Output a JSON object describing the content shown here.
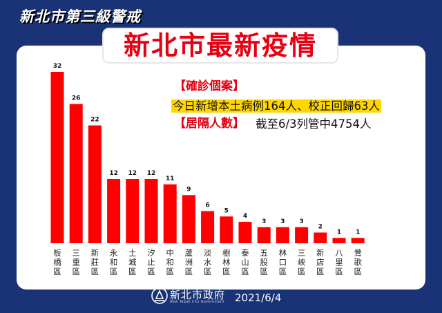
{
  "header": {
    "alert_level": "新北市第三級警戒"
  },
  "title": "新北市最新疫情",
  "notes": {
    "confirmed_heading": "【確診個案】",
    "confirmed_text": "今日新增本土病例164人、校正回歸63人",
    "isolation_heading": "【居隔人數】",
    "isolation_text": "截至6/3列管中4754人"
  },
  "footer": {
    "org_name": "新北市政府",
    "org_name_en": "New Taipei City Government",
    "date": "2021/6/4"
  },
  "colors": {
    "background": "#1a3276",
    "bar": "#ff0000",
    "accent": "#e60012",
    "highlight": "#ffd600"
  },
  "chart_data": {
    "type": "bar",
    "categories": [
      "板橋區",
      "三重區",
      "新莊區",
      "永和區",
      "土城區",
      "汐止區",
      "中和區",
      "蘆洲區",
      "淡水區",
      "樹林區",
      "泰山區",
      "五股區",
      "林口區",
      "三峽區",
      "新店區",
      "八里區",
      "鶯歌區"
    ],
    "values": [
      32,
      26,
      22,
      12,
      12,
      12,
      11,
      9,
      6,
      5,
      4,
      3,
      3,
      3,
      2,
      1,
      1
    ],
    "title": "",
    "xlabel": "",
    "ylabel": "",
    "ylim": [
      0,
      32
    ],
    "grid": false,
    "data_labels": true
  }
}
